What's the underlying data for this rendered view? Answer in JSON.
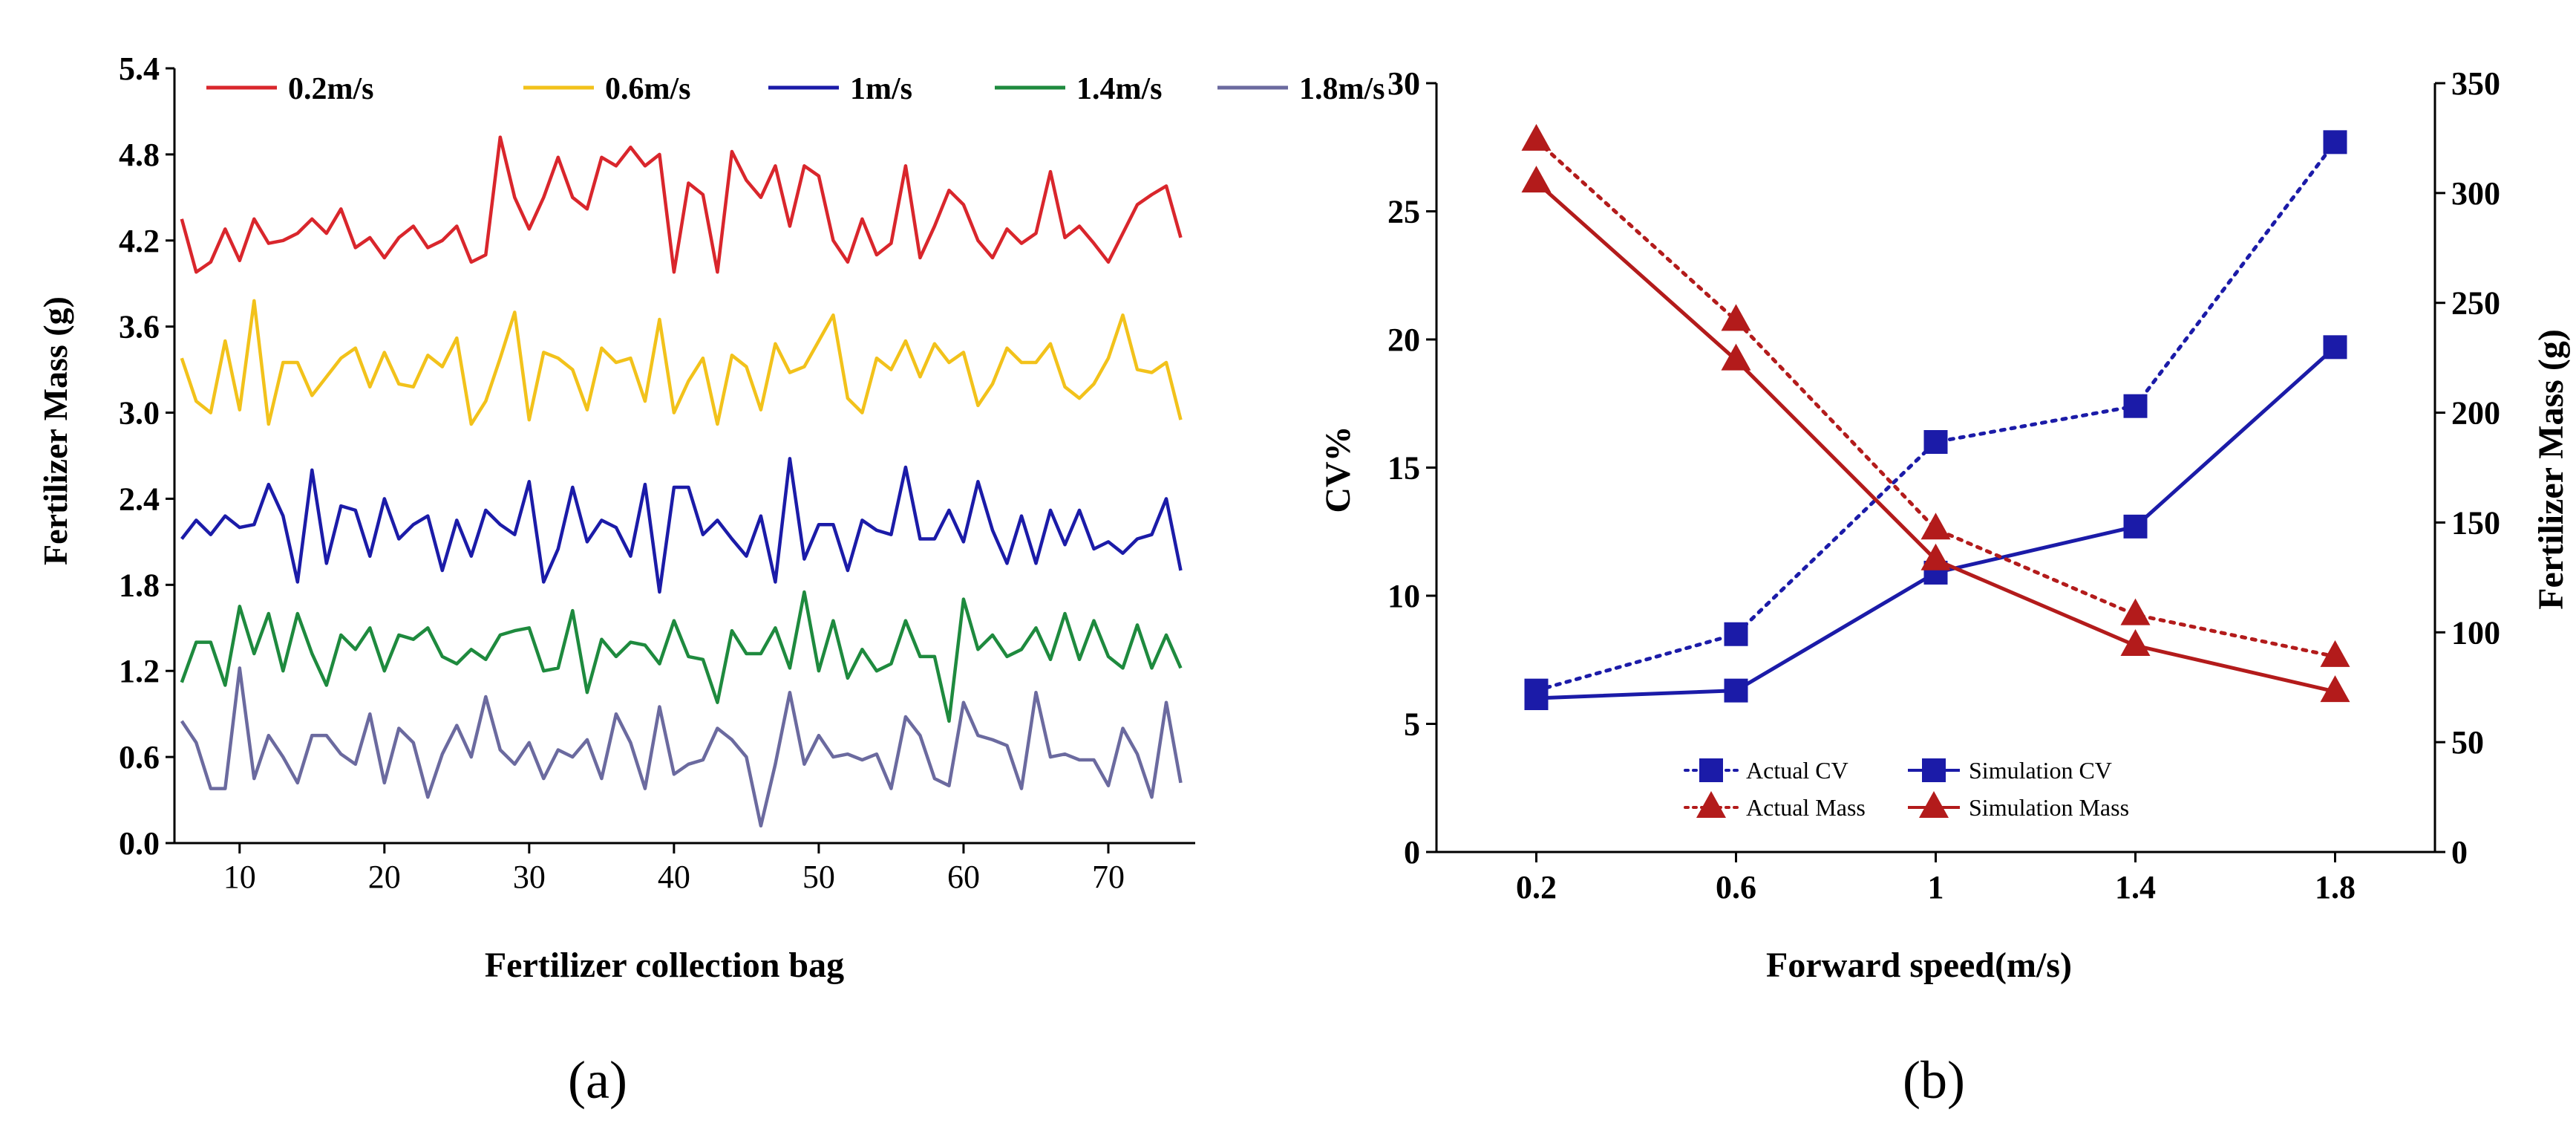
{
  "chart_data": [
    {
      "type": "line",
      "panel_label": "(a)",
      "title": "",
      "xlabel": "Fertilizer collection bag",
      "ylabel": "Fertilizer Mass (g)",
      "xlim": [
        5.5,
        76
      ],
      "ylim": [
        0.0,
        5.4
      ],
      "xticks": [
        10,
        20,
        30,
        40,
        50,
        60,
        70
      ],
      "yticks": [
        0.0,
        0.6,
        1.2,
        1.8,
        2.4,
        3.0,
        3.6,
        4.2,
        4.8,
        5.4
      ],
      "ytick_labels": [
        "0.0",
        "0.6",
        "1.2",
        "1.8",
        "2.4",
        "3.0",
        "3.6",
        "4.2",
        "4.8",
        "5.4"
      ],
      "legend_position": "top",
      "x": [
        6,
        7,
        8,
        9,
        10,
        11,
        12,
        13,
        14,
        15,
        16,
        17,
        18,
        19,
        20,
        21,
        22,
        23,
        24,
        25,
        26,
        27,
        28,
        29,
        30,
        31,
        32,
        33,
        34,
        35,
        36,
        37,
        38,
        39,
        40,
        41,
        42,
        43,
        44,
        45,
        46,
        47,
        48,
        49,
        50,
        51,
        52,
        53,
        54,
        55,
        56,
        57,
        58,
        59,
        60,
        61,
        62,
        63,
        64,
        65,
        66,
        67,
        68,
        69,
        70,
        71,
        72,
        73,
        74,
        75
      ],
      "series": [
        {
          "name": "0.2m/s",
          "color": "#d9262c",
          "values": [
            4.35,
            3.98,
            4.05,
            4.28,
            4.06,
            4.35,
            4.18,
            4.2,
            4.25,
            4.35,
            4.25,
            4.42,
            4.15,
            4.22,
            4.08,
            4.22,
            4.3,
            4.15,
            4.2,
            4.3,
            4.05,
            4.1,
            4.92,
            4.5,
            4.28,
            4.5,
            4.78,
            4.5,
            4.42,
            4.78,
            4.72,
            4.85,
            4.72,
            4.8,
            3.98,
            4.6,
            4.52,
            3.98,
            4.82,
            4.62,
            4.5,
            4.72,
            4.3,
            4.72,
            4.65,
            4.2,
            4.05,
            4.35,
            4.1,
            4.18,
            4.72,
            4.08,
            4.3,
            4.55,
            4.45,
            4.2,
            4.08,
            4.28,
            4.18,
            4.25,
            4.68,
            4.22,
            4.3,
            4.18,
            4.05,
            4.25,
            4.45,
            4.52,
            4.58,
            4.22
          ]
        },
        {
          "name": "0.6m/s",
          "color": "#f2c21b",
          "values": [
            3.38,
            3.08,
            3.0,
            3.5,
            3.02,
            3.78,
            2.92,
            3.35,
            3.35,
            3.12,
            3.25,
            3.38,
            3.45,
            3.18,
            3.42,
            3.2,
            3.18,
            3.4,
            3.32,
            3.52,
            2.92,
            3.08,
            3.38,
            3.7,
            2.95,
            3.42,
            3.38,
            3.3,
            3.02,
            3.45,
            3.35,
            3.38,
            3.08,
            3.65,
            3.0,
            3.22,
            3.38,
            2.92,
            3.4,
            3.32,
            3.02,
            3.48,
            3.28,
            3.32,
            3.5,
            3.68,
            3.1,
            3.0,
            3.38,
            3.3,
            3.5,
            3.25,
            3.48,
            3.35,
            3.42,
            3.05,
            3.2,
            3.45,
            3.35,
            3.35,
            3.48,
            3.18,
            3.1,
            3.2,
            3.38,
            3.68,
            3.3,
            3.28,
            3.35,
            2.95
          ]
        },
        {
          "name": "1m/s",
          "color": "#1b1ba8",
          "values": [
            2.12,
            2.25,
            2.15,
            2.28,
            2.2,
            2.22,
            2.5,
            2.28,
            1.82,
            2.6,
            1.95,
            2.35,
            2.32,
            2.0,
            2.4,
            2.12,
            2.22,
            2.28,
            1.9,
            2.25,
            2.0,
            2.32,
            2.22,
            2.15,
            2.52,
            1.82,
            2.05,
            2.48,
            2.1,
            2.25,
            2.2,
            2.0,
            2.5,
            1.75,
            2.48,
            2.48,
            2.15,
            2.25,
            2.12,
            2.0,
            2.28,
            1.82,
            2.68,
            1.98,
            2.22,
            2.22,
            1.9,
            2.25,
            2.18,
            2.15,
            2.62,
            2.12,
            2.12,
            2.32,
            2.1,
            2.52,
            2.18,
            1.95,
            2.28,
            1.95,
            2.32,
            2.08,
            2.32,
            2.05,
            2.1,
            2.02,
            2.12,
            2.15,
            2.4,
            1.9
          ]
        },
        {
          "name": "1.4m/s",
          "color": "#1e8a3e",
          "values": [
            1.12,
            1.4,
            1.4,
            1.1,
            1.65,
            1.32,
            1.6,
            1.2,
            1.6,
            1.32,
            1.1,
            1.45,
            1.35,
            1.5,
            1.2,
            1.45,
            1.42,
            1.5,
            1.3,
            1.25,
            1.35,
            1.28,
            1.45,
            1.48,
            1.5,
            1.2,
            1.22,
            1.62,
            1.05,
            1.42,
            1.3,
            1.4,
            1.38,
            1.25,
            1.55,
            1.3,
            1.28,
            0.98,
            1.48,
            1.32,
            1.32,
            1.5,
            1.22,
            1.75,
            1.2,
            1.55,
            1.15,
            1.35,
            1.2,
            1.25,
            1.55,
            1.3,
            1.3,
            0.85,
            1.7,
            1.35,
            1.45,
            1.3,
            1.35,
            1.5,
            1.28,
            1.6,
            1.28,
            1.55,
            1.3,
            1.22,
            1.52,
            1.22,
            1.45,
            1.22
          ]
        },
        {
          "name": "1.8m/s",
          "color": "#6b6a9f",
          "values": [
            0.85,
            0.7,
            0.38,
            0.38,
            1.22,
            0.45,
            0.75,
            0.6,
            0.42,
            0.75,
            0.75,
            0.62,
            0.55,
            0.9,
            0.42,
            0.8,
            0.7,
            0.32,
            0.62,
            0.82,
            0.6,
            1.02,
            0.65,
            0.55,
            0.7,
            0.45,
            0.65,
            0.6,
            0.72,
            0.45,
            0.9,
            0.7,
            0.38,
            0.95,
            0.48,
            0.55,
            0.58,
            0.8,
            0.72,
            0.6,
            0.12,
            0.55,
            1.05,
            0.55,
            0.75,
            0.6,
            0.62,
            0.58,
            0.62,
            0.38,
            0.88,
            0.75,
            0.45,
            0.4,
            0.98,
            0.75,
            0.72,
            0.68,
            0.38,
            1.05,
            0.6,
            0.62,
            0.58,
            0.58,
            0.4,
            0.8,
            0.62,
            0.32,
            0.98,
            0.42
          ]
        }
      ]
    },
    {
      "type": "line",
      "panel_label": "(b)",
      "title": "",
      "xlabel": "Forward speed(m/s)",
      "ylabel": "CV%",
      "ylabel_right": "Fertilizer Mass (g)",
      "categories": [
        "0.2",
        "0.6",
        "1",
        "1.4",
        "1.8"
      ],
      "xlim": [
        0.0,
        2.0
      ],
      "ylim": [
        0,
        30
      ],
      "ylim_right": [
        0,
        350
      ],
      "yticks": [
        0,
        5,
        10,
        15,
        20,
        25,
        30
      ],
      "yticks_right": [
        0,
        50,
        100,
        150,
        200,
        250,
        300,
        350
      ],
      "legend_position": "bottom-center",
      "series": [
        {
          "name": "Actual CV",
          "axis": "left",
          "style": "dotted",
          "marker": "square",
          "color": "#1b1ba8",
          "values": [
            6.3,
            8.5,
            16.0,
            17.4,
            27.7
          ]
        },
        {
          "name": "Simulation CV",
          "axis": "left",
          "style": "solid",
          "marker": "square",
          "color": "#1b1ba8",
          "values": [
            6.0,
            6.3,
            10.9,
            12.7,
            19.7
          ]
        },
        {
          "name": "Actual Mass",
          "axis": "right",
          "style": "dotted",
          "marker": "triangle",
          "color": "#b31b1b",
          "values": [
            324,
            242,
            147,
            108,
            89
          ]
        },
        {
          "name": "Simulation Mass",
          "axis": "right",
          "style": "solid",
          "marker": "triangle",
          "color": "#b31b1b",
          "values": [
            305,
            224,
            133,
            94,
            73
          ]
        }
      ]
    }
  ]
}
